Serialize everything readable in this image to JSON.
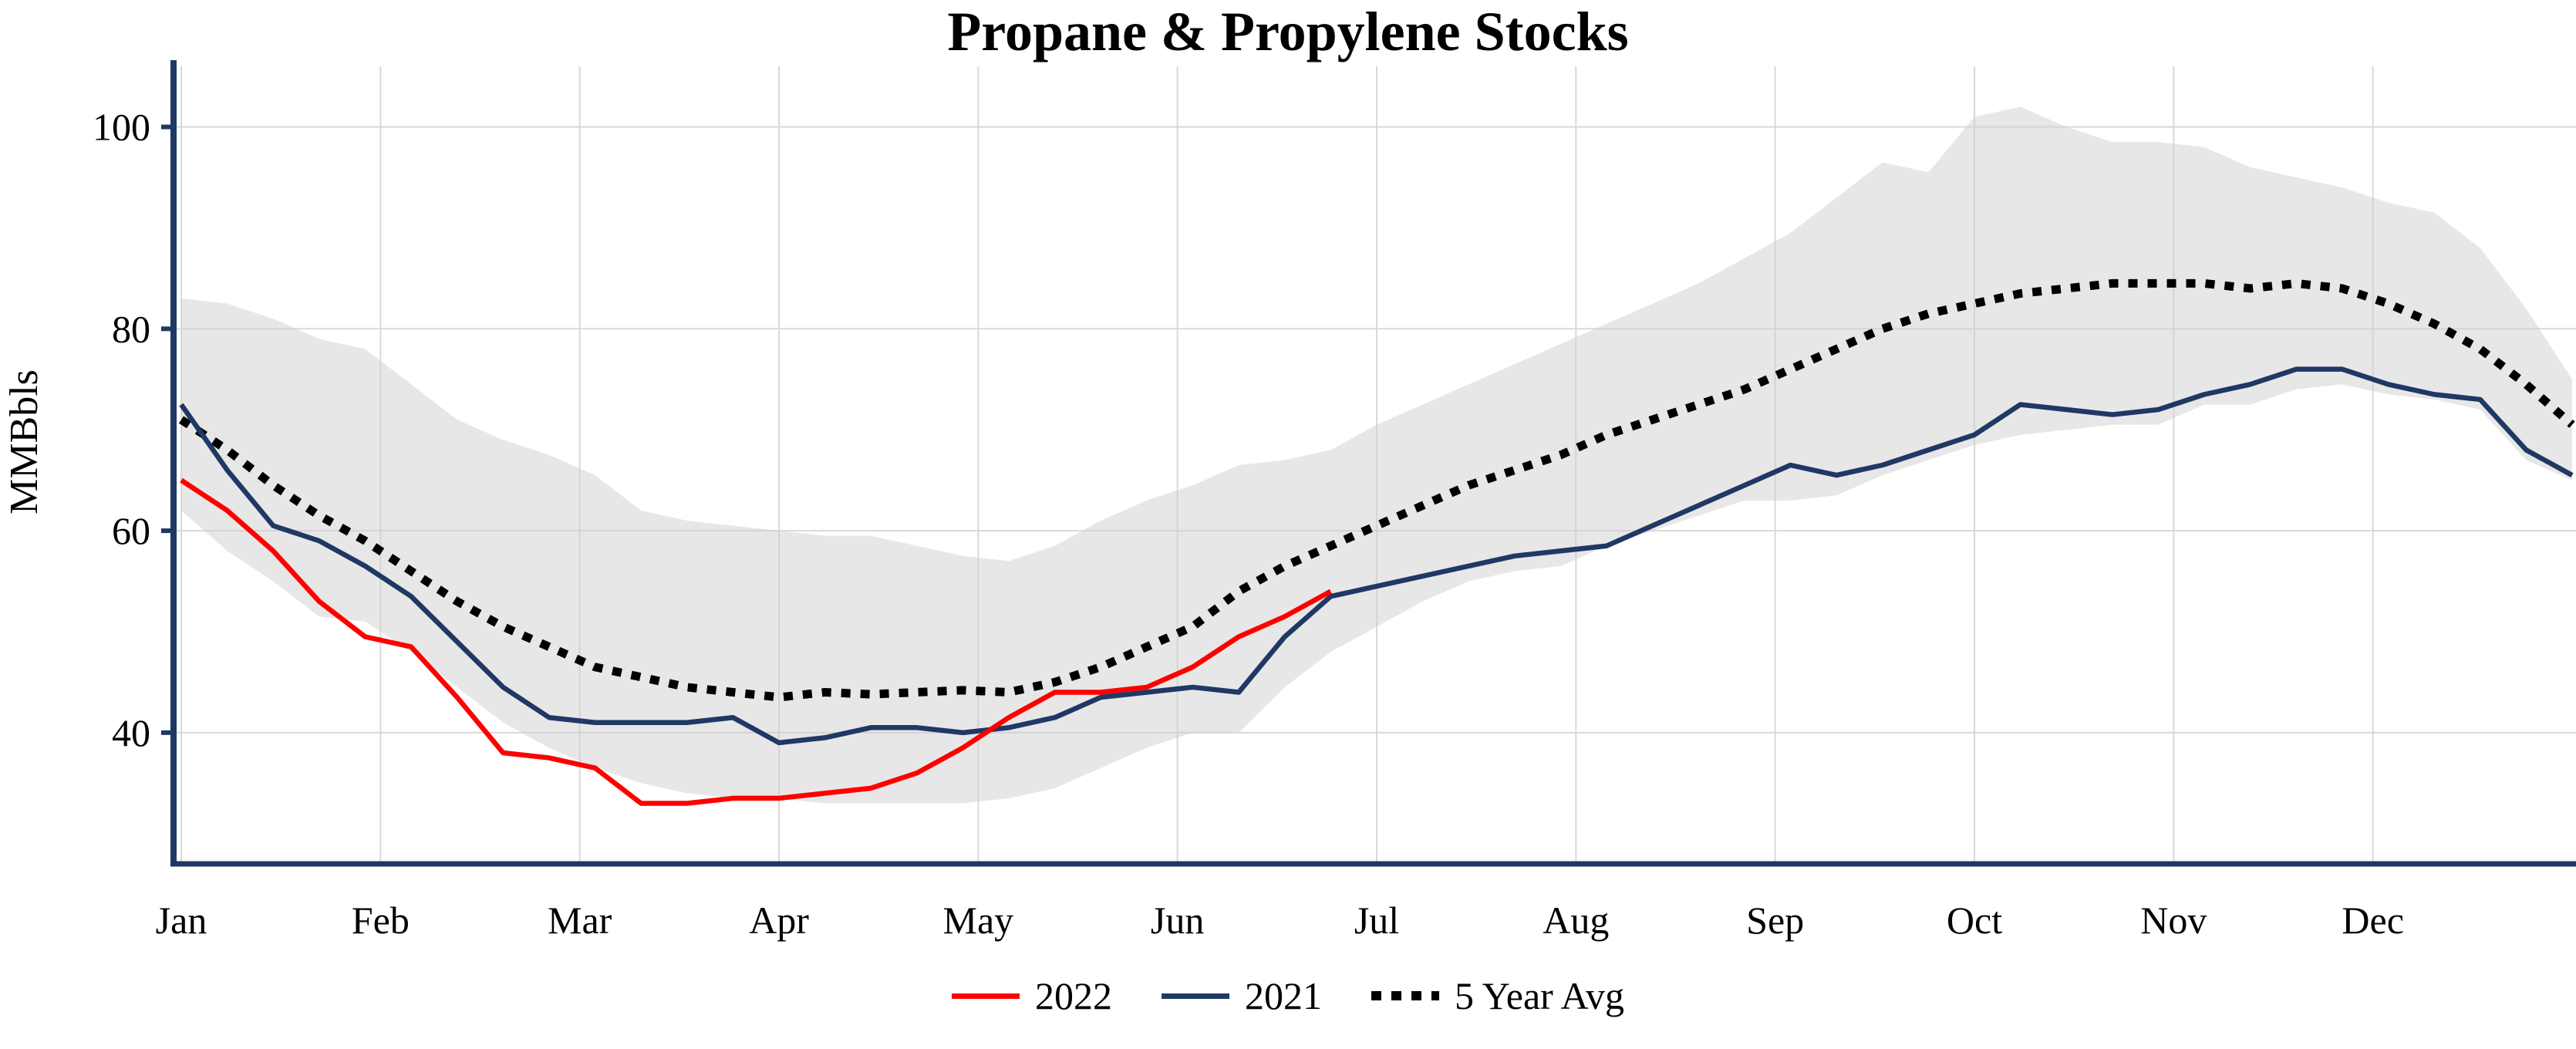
{
  "chart_data": {
    "type": "line",
    "title": "Propane & Propylene Stocks",
    "ylabel": "MMBbls",
    "x_tick_labels": [
      "Jan",
      "Feb",
      "Mar",
      "Apr",
      "May",
      "Jun",
      "Jul",
      "Aug",
      "Sep",
      "Oct",
      "Nov",
      "Dec"
    ],
    "y_ticks": [
      40,
      60,
      80,
      100
    ],
    "ylim": [
      27,
      106
    ],
    "x_unit": "weekly points across one year",
    "grid": true,
    "legend_position": "bottom",
    "colors": {
      "axis": "#1f3864",
      "grid": "#d9d9d9",
      "band_fill": "#d0d0d0",
      "red_2022": "#ff0000",
      "navy_2021": "#1f3864",
      "avg_black": "#000000"
    },
    "range_band": {
      "description": "5 year min-max shaded range",
      "upper": [
        83,
        82.5,
        81,
        79,
        78,
        74.5,
        71,
        69,
        67.5,
        65.5,
        62,
        61,
        60.5,
        60,
        59.5,
        59.5,
        58.5,
        57.5,
        57,
        58.5,
        61,
        63,
        64.5,
        66.5,
        67,
        68,
        70.5,
        72.5,
        74.5,
        76.5,
        78.5,
        80.5,
        82.5,
        84.5,
        87,
        89.5,
        93,
        96.5,
        95.5,
        101,
        102,
        100,
        98.5,
        98.5,
        98,
        96,
        95,
        94,
        92.5,
        91.5,
        88,
        82,
        75
      ],
      "lower": [
        62,
        58,
        55,
        51.5,
        51,
        48,
        44.5,
        41,
        38.5,
        36.5,
        35,
        34,
        33.5,
        33.5,
        33,
        33,
        33,
        33,
        33.5,
        34.5,
        36.5,
        38.5,
        40,
        40,
        44.5,
        48,
        50.5,
        53,
        55,
        56,
        56.5,
        58.5,
        60,
        61.5,
        63,
        63,
        63.5,
        65.5,
        67,
        68.5,
        69.5,
        70,
        70.5,
        70.5,
        72.5,
        72.5,
        74,
        74.5,
        73.5,
        73,
        72,
        67,
        65
      ]
    },
    "series": [
      {
        "name": "2022",
        "color": "#ff0000",
        "style": "solid",
        "values": [
          65,
          62,
          58,
          53,
          49.5,
          48.5,
          43.5,
          38,
          37.5,
          36.5,
          33,
          33,
          33.5,
          33.5,
          34,
          34.5,
          36,
          38.5,
          41.5,
          44,
          44,
          44.5,
          46.5,
          49.5,
          51.5,
          54
        ]
      },
      {
        "name": "2021",
        "color": "#1f3864",
        "style": "solid",
        "values": [
          72.5,
          66,
          60.5,
          59,
          56.5,
          53.5,
          49,
          44.5,
          41.5,
          41,
          41,
          41,
          41.5,
          39,
          39.5,
          40.5,
          40.5,
          40,
          40.5,
          41.5,
          43.5,
          44,
          44.5,
          44,
          49.5,
          53.5,
          54.5,
          55.5,
          56.5,
          57.5,
          58,
          58.5,
          60.5,
          62.5,
          64.5,
          66.5,
          65.5,
          66.5,
          68,
          69.5,
          72.5,
          72,
          71.5,
          72,
          73.5,
          74.5,
          76,
          76,
          74.5,
          73.5,
          73,
          68,
          65.5
        ]
      },
      {
        "name": "5 Year Avg",
        "color": "#000000",
        "style": "dotted",
        "values": [
          71,
          68,
          64.5,
          61.5,
          59,
          56,
          53,
          50.5,
          48.5,
          46.5,
          45.5,
          44.5,
          44,
          43.5,
          44,
          43.8,
          44,
          44.2,
          44,
          45,
          46.5,
          48.5,
          50.5,
          54,
          56.5,
          58.5,
          60.5,
          62.5,
          64.5,
          66,
          67.5,
          69.5,
          71,
          72.5,
          74,
          76,
          78,
          80,
          81.5,
          82.5,
          83.5,
          84,
          84.5,
          84.5,
          84.5,
          84,
          84.5,
          84,
          82.5,
          80.5,
          78,
          74.5,
          70.5
        ]
      }
    ]
  }
}
